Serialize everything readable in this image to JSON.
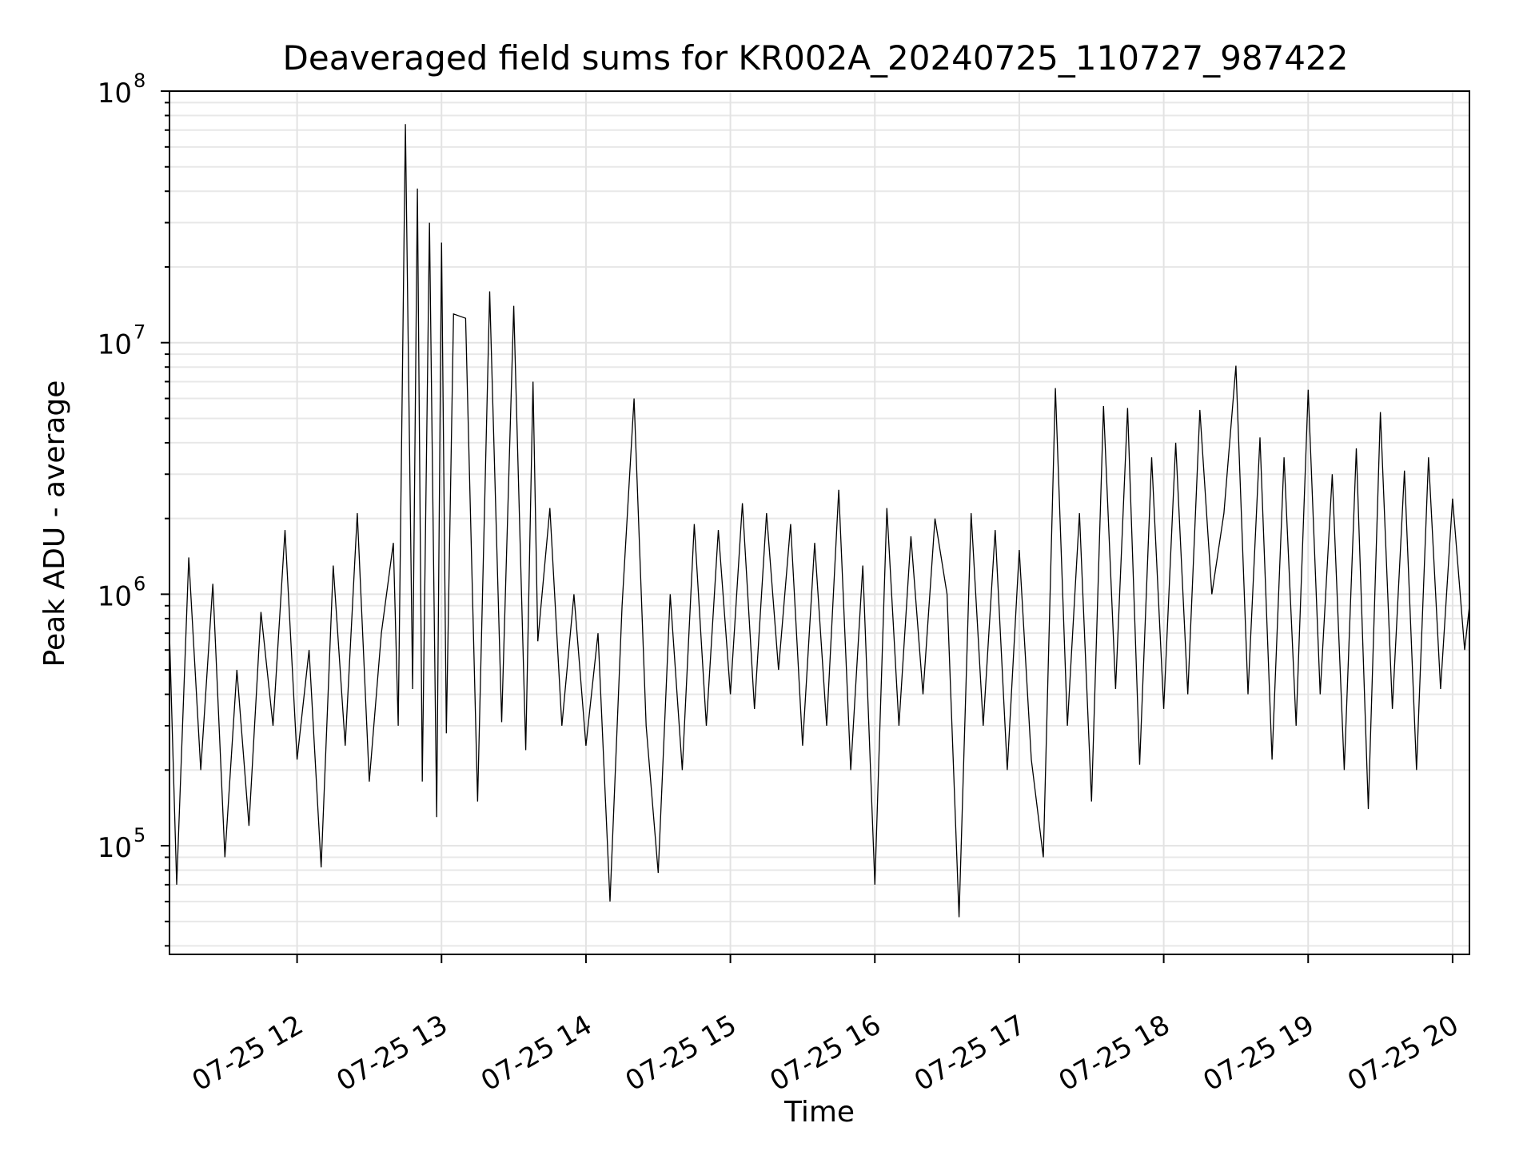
{
  "chart_data": {
    "type": "line",
    "title": "Deaveraged field sums for KR002A_20240725_110727_987422",
    "xlabel": "Time",
    "ylabel": "Peak ADU - average",
    "yscale": "log",
    "xlim": [
      "2024-07-25 11:07",
      "2024-07-25 20:07"
    ],
    "ylim": [
      37000,
      100000000
    ],
    "x_ticks": [
      "07-25 12",
      "07-25 13",
      "07-25 14",
      "07-25 15",
      "07-25 16",
      "07-25 17",
      "07-25 18",
      "07-25 19",
      "07-25 20"
    ],
    "y_ticks": [
      {
        "base": "10",
        "exp": "5",
        "value": 100000
      },
      {
        "base": "10",
        "exp": "6",
        "value": 1000000
      },
      {
        "base": "10",
        "exp": "7",
        "value": 10000000
      },
      {
        "base": "10",
        "exp": "8",
        "value": 100000000
      }
    ],
    "grid": true,
    "line_color": "#000000",
    "series": [
      {
        "x": [
          "11:07",
          "11:10",
          "11:15",
          "11:20",
          "11:25",
          "11:30",
          "11:35",
          "11:40",
          "11:45",
          "11:50",
          "11:55",
          "12:00",
          "12:05",
          "12:10",
          "12:15",
          "12:20",
          "12:25",
          "12:30",
          "12:35",
          "12:40",
          "12:42",
          "12:45",
          "12:48",
          "12:50",
          "12:52",
          "12:55",
          "12:58",
          "13:00",
          "13:02",
          "13:05",
          "13:10",
          "13:15",
          "13:20",
          "13:25",
          "13:30",
          "13:35",
          "13:38",
          "13:40",
          "13:45",
          "13:50",
          "13:55",
          "14:00",
          "14:05",
          "14:10",
          "14:15",
          "14:20",
          "14:25",
          "14:30",
          "14:35",
          "14:40",
          "14:45",
          "14:50",
          "14:55",
          "15:00",
          "15:05",
          "15:10",
          "15:15",
          "15:20",
          "15:25",
          "15:30",
          "15:35",
          "15:40",
          "15:45",
          "15:50",
          "15:55",
          "16:00",
          "16:05",
          "16:10",
          "16:15",
          "16:20",
          "16:25",
          "16:30",
          "16:35",
          "16:40",
          "16:45",
          "16:50",
          "16:55",
          "17:00",
          "17:05",
          "17:10",
          "17:15",
          "17:20",
          "17:25",
          "17:30",
          "17:35",
          "17:40",
          "17:45",
          "17:50",
          "17:55",
          "18:00",
          "18:05",
          "18:10",
          "18:15",
          "18:20",
          "18:25",
          "18:30",
          "18:35",
          "18:40",
          "18:45",
          "18:50",
          "18:55",
          "19:00",
          "19:05",
          "19:10",
          "19:15",
          "19:20",
          "19:25",
          "19:30",
          "19:35",
          "19:40",
          "19:45",
          "19:50",
          "19:55",
          "20:00",
          "20:05",
          "20:07"
        ],
        "y": [
          700000,
          70000,
          1400000,
          200000,
          1100000,
          90000,
          500000,
          120000,
          850000,
          300000,
          1800000,
          220000,
          600000,
          82000,
          1300000,
          250000,
          2100000,
          180000,
          700000,
          1600000,
          300000,
          74000000,
          420000,
          41000000,
          180000,
          30000000,
          130000,
          25000000,
          280000,
          13000000,
          12500000,
          150000,
          16000000,
          310000,
          14000000,
          240000,
          7000000,
          650000,
          2200000,
          300000,
          1000000,
          250000,
          700000,
          60000,
          900000,
          6000000,
          300000,
          78000,
          1000000,
          200000,
          1900000,
          300000,
          1800000,
          400000,
          2300000,
          350000,
          2100000,
          500000,
          1900000,
          250000,
          1600000,
          300000,
          2600000,
          200000,
          1300000,
          70000,
          2200000,
          300000,
          1700000,
          400000,
          2000000,
          1000000,
          52000,
          2100000,
          300000,
          1800000,
          200000,
          1500000,
          220000,
          90000,
          6600000,
          300000,
          2100000,
          150000,
          5600000,
          420000,
          5500000,
          210000,
          3500000,
          350000,
          4000000,
          400000,
          5400000,
          1000000,
          2100000,
          8100000,
          400000,
          4200000,
          220000,
          3500000,
          300000,
          6500000,
          400000,
          3000000,
          200000,
          3800000,
          140000,
          5300000,
          350000,
          3100000,
          200000,
          3500000,
          420000,
          2400000,
          600000,
          900000
        ]
      }
    ]
  }
}
